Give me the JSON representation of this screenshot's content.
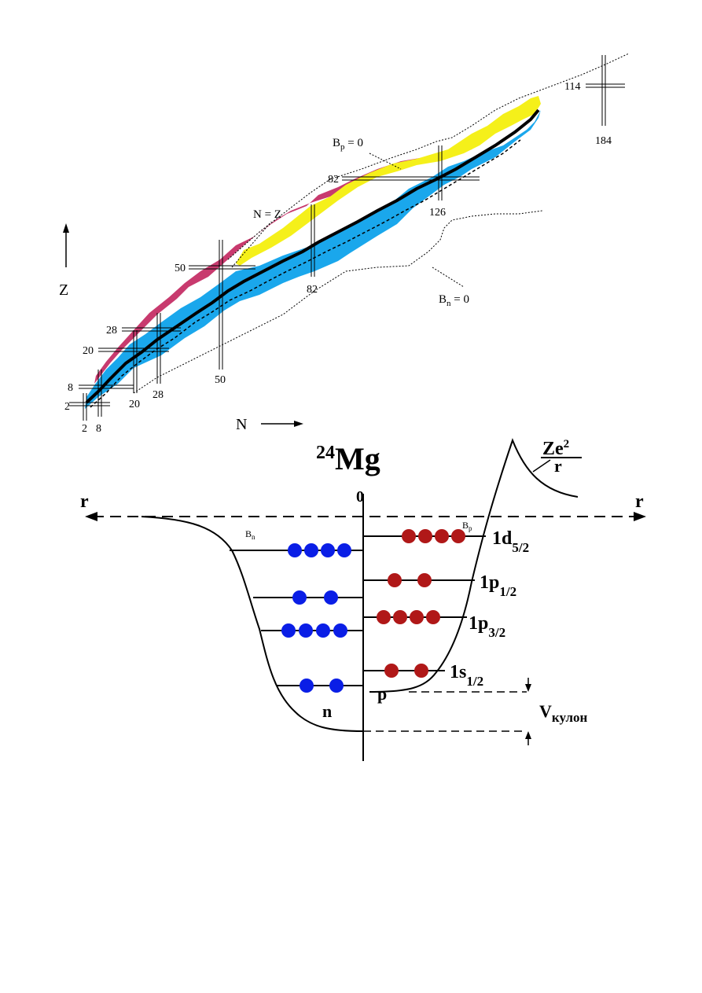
{
  "chart_of_nuclides": {
    "axis_z_label": "Z",
    "axis_n_label": "N",
    "arrow": "—→",
    "bp_zero_label": "B",
    "bp_zero_sub": "p",
    "bp_zero_eq": " = 0",
    "bn_zero_label": "B",
    "bn_zero_sub": "n",
    "bn_zero_eq": " = 0",
    "nz_label": "N = Z",
    "magic_z": [
      "2",
      "8",
      "20",
      "28",
      "50",
      "82",
      "114"
    ],
    "magic_n": [
      "2",
      "8",
      "20",
      "28",
      "50",
      "82",
      "126",
      "184"
    ],
    "colors": {
      "stable_black": "#000000",
      "proton_rich": "#c83a6e",
      "neutron_rich": "#1aa7ec",
      "heavy_yellow": "#f5f01a"
    }
  },
  "potential_well": {
    "title_mass": "24",
    "title_element": "Mg",
    "axis_r_left": "r",
    "axis_r_right": "r",
    "origin_label": "0",
    "coulomb_numerator": "Ze",
    "coulomb_power": "2",
    "coulomb_denominator": "r",
    "bn_label": "B",
    "bn_sub": "n",
    "bp_label": "B",
    "bp_sub": "p",
    "neutron_label": "n",
    "proton_label": "p",
    "v_coulomb_label": "V",
    "v_coulomb_sub": "кулон",
    "levels": [
      {
        "name": "1d",
        "sub": "5/2",
        "neutrons": 4,
        "protons": 4
      },
      {
        "name": "1p",
        "sub": "1/2",
        "neutrons": 2,
        "protons": 2
      },
      {
        "name": "1p",
        "sub": "3/2",
        "neutrons": 4,
        "protons": 4
      },
      {
        "name": "1s",
        "sub": "1/2",
        "neutrons": 2,
        "protons": 2
      }
    ],
    "colors": {
      "neutron": "#0a1ee6",
      "proton": "#b01818"
    }
  }
}
